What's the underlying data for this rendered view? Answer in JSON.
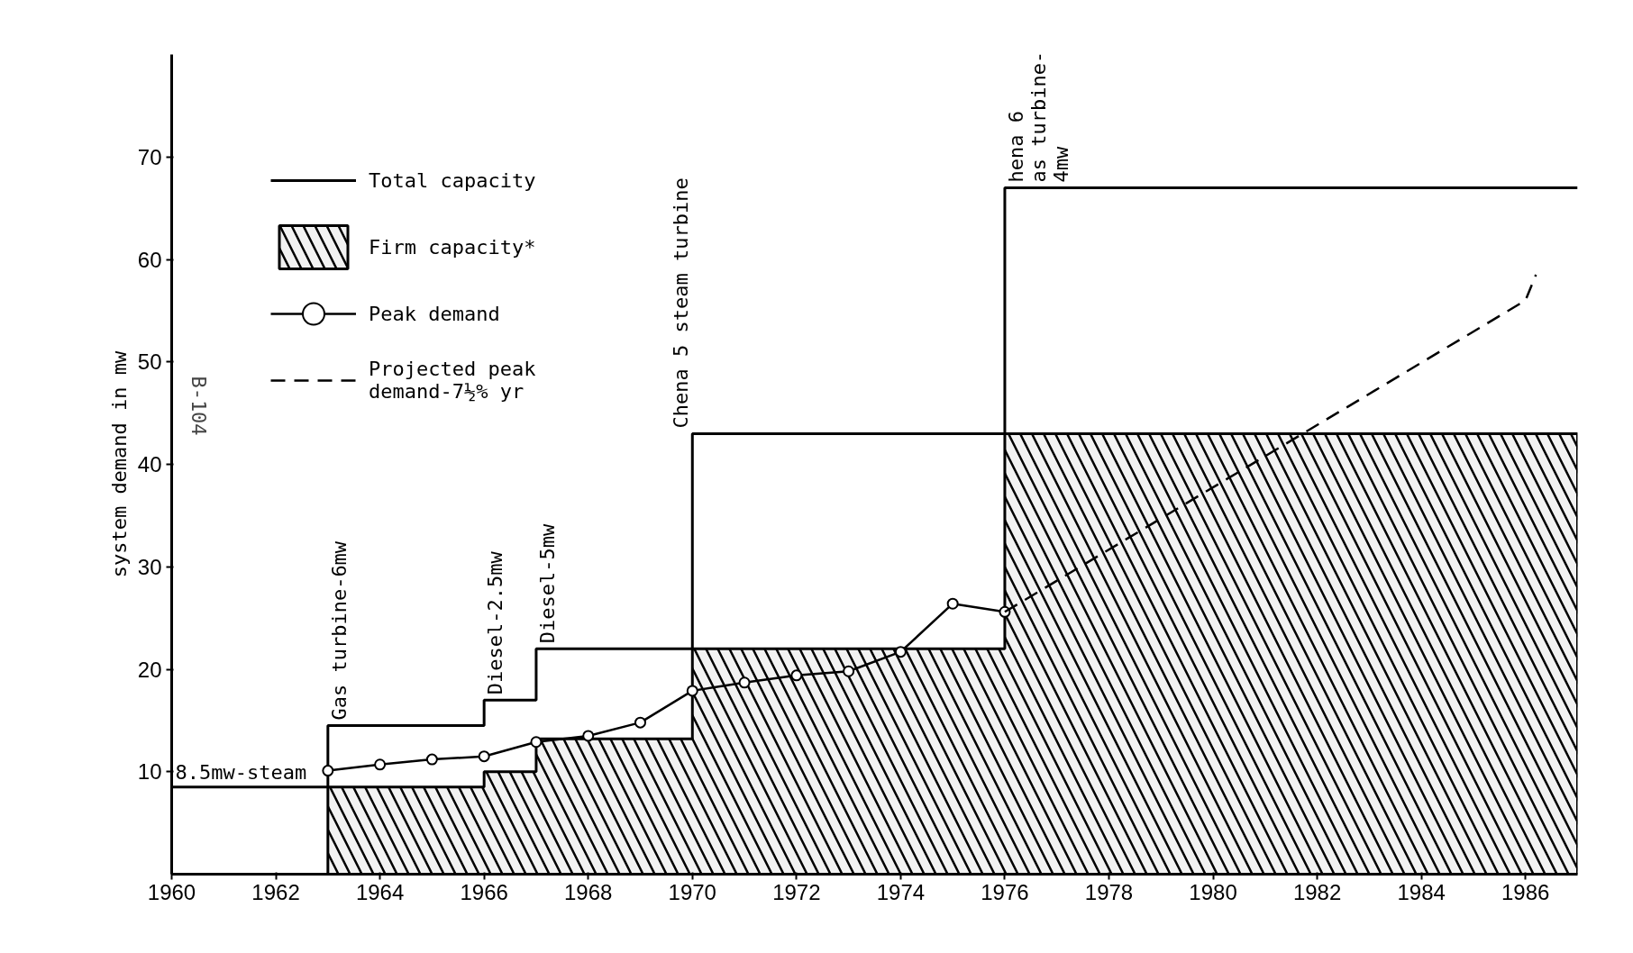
{
  "chart_data": {
    "type": "line",
    "ylabel": "system demand in mw",
    "xlim": [
      1960,
      1987
    ],
    "ylim": [
      0,
      80
    ],
    "xticks": [
      1960,
      1962,
      1964,
      1966,
      1968,
      1970,
      1972,
      1974,
      1976,
      1978,
      1980,
      1982,
      1984,
      1986
    ],
    "yticks": [
      10,
      20,
      30,
      40,
      50,
      60,
      70
    ],
    "grid": false,
    "legend": "top left",
    "series": [
      {
        "name": "Total capacity",
        "type": "step",
        "color": "#000000",
        "x": [
          1960,
          1963,
          1966,
          1967,
          1970,
          1976,
          1987
        ],
        "values": [
          8.5,
          14.5,
          17,
          22,
          43,
          67,
          67
        ]
      },
      {
        "name": "Firm capacity*",
        "type": "area",
        "color": "#000000",
        "x": [
          1963,
          1966,
          1966,
          1967,
          1967,
          1970,
          1970,
          1976,
          1976,
          1987
        ],
        "values": [
          8.5,
          8.5,
          10,
          10,
          13.2,
          13.2,
          22,
          22,
          43,
          43
        ]
      },
      {
        "name": "Peak demand",
        "color": "#000000",
        "marker": "circle",
        "x": [
          1963,
          1964,
          1965,
          1966,
          1967,
          1968,
          1969,
          1970,
          1971,
          1972,
          1973,
          1974,
          1975,
          1976
        ],
        "values": [
          10.1,
          10.7,
          11.2,
          11.5,
          12.9,
          13.5,
          14.8,
          17.9,
          18.7,
          19.4,
          19.8,
          21.7,
          26.4,
          25.6
        ]
      },
      {
        "name": "Projected peak\ndemand-7½% yr",
        "color": "#000000",
        "line_style": "dashed",
        "x": [
          1976,
          1986,
          1986.2
        ],
        "values": [
          25.6,
          56,
          58.5
        ]
      }
    ],
    "annotations": [
      {
        "text": "8.5mw-steam",
        "x": 1960,
        "y": 8.5
      },
      {
        "text": "Gas turbine-6mw",
        "x": 1963,
        "y": 14.5
      },
      {
        "text": "Diesel-2.5mw",
        "x": 1966,
        "y": 17
      },
      {
        "text": "Diesel-5mw",
        "x": 1967,
        "y": 22
      },
      {
        "text": "Chena 5 steam turbine",
        "x": 1970,
        "y": 43
      },
      {
        "text": "hena 6\nas turbine-\n4mw",
        "x": 1976,
        "y": 67
      },
      "B-104"
    ]
  }
}
